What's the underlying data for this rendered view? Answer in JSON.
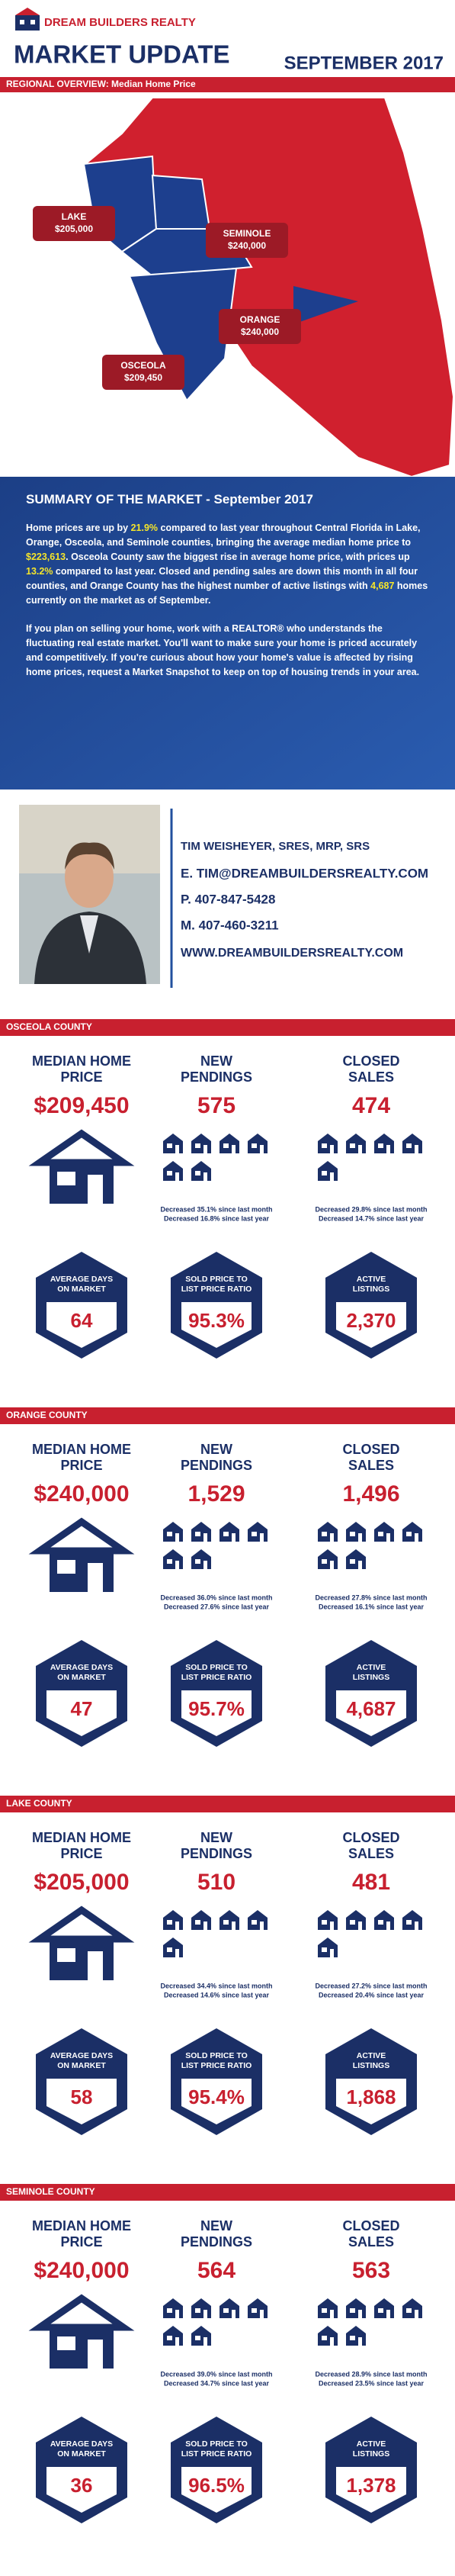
{
  "header": {
    "brand": "DREAM BUILDERS REALTY",
    "title": "MARKET UPDATE",
    "date": "SEPTEMBER 2017"
  },
  "regional": {
    "label": "REGIONAL OVERVIEW: Median Home Price",
    "counties": [
      {
        "name": "LAKE",
        "value": "$205,000"
      },
      {
        "name": "SEMINOLE",
        "value": "$240,000"
      },
      {
        "name": "ORANGE",
        "value": "$240,000"
      },
      {
        "name": "OSCEOLA",
        "value": "$209,450"
      }
    ]
  },
  "summary": {
    "title": "SUMMARY OF THE MARKET - September 2017",
    "paragraphs": [
      [
        "Home prices are up by ",
        "21.9%",
        " compared to last year throughout Central Florida in Lake, Orange, Osceola, and Seminole counties, bringing the average median home price to ",
        "$223,613",
        ". Osceola County saw the biggest rise in average home price, with prices up ",
        "13.2%",
        " compared to last year. Closed and pending sales are down this month in all four counties, and Orange County has the highest number of active listings with ",
        "4,687",
        " homes currently on the market as of September."
      ],
      [
        "If you plan on selling your home, work with a REALTOR® who understands the fluctuating real estate market. You'll want to make sure your home is priced accurately and competitively. If you're curious about how your home's value is affected by rising home prices, request a Market Snapshot to keep on top of housing trends in your area."
      ]
    ]
  },
  "agent": {
    "name": "TIM WEISHEYER, SRES, MRP, SRS",
    "email": "E. TIM@DREAMBUILDERSREALTY.COM",
    "phone": "P. 407-847-5428",
    "mobile": "M. 407-460-3211",
    "website": "WWW.DREAMBUILDERSREALTY.COM"
  },
  "metric_labels": {
    "median": [
      "MEDIAN HOME",
      "PRICE"
    ],
    "pendings": [
      "NEW",
      "PENDINGS"
    ],
    "closed": [
      "CLOSED",
      "SALES"
    ],
    "days": [
      "AVERAGE DAYS",
      "ON MARKET"
    ],
    "ratio": [
      "SOLD PRICE TO",
      "LIST PRICE RATIO"
    ],
    "active": [
      "ACTIVE",
      "LISTINGS"
    ]
  },
  "counties": [
    {
      "name": "OSCEOLA COUNTY",
      "median": "$209,450",
      "pendings": "575",
      "closed": "474",
      "pendings_notes": [
        "Decreased 35.1% since last month",
        "Decreased 16.8% since last year"
      ],
      "closed_notes": [
        "Decreased 29.8% since last month",
        "Decreased 14.7% since last year"
      ],
      "days": "64",
      "ratio": "95.3%",
      "active": "2,370"
    },
    {
      "name": "ORANGE COUNTY",
      "median": "$240,000",
      "pendings": "1,529",
      "closed": "1,496",
      "pendings_notes": [
        "Decreased 36.0% since last month",
        "Decreased 27.6% since last year"
      ],
      "closed_notes": [
        "Decreased 27.8% since last month",
        "Decreased 16.1% since last year"
      ],
      "days": "47",
      "ratio": "95.7%",
      "active": "4,687"
    },
    {
      "name": "LAKE COUNTY",
      "median": "$205,000",
      "pendings": "510",
      "closed": "481",
      "pendings_notes": [
        "Decreased 34.4% since last month",
        "Decreased 14.6% since last year"
      ],
      "closed_notes": [
        "Decreased 27.2% since last month",
        "Decreased 20.4% since last year"
      ],
      "days": "58",
      "ratio": "95.4%",
      "active": "1,868"
    },
    {
      "name": "SEMINOLE COUNTY",
      "median": "$240,000",
      "pendings": "564",
      "closed": "563",
      "pendings_notes": [
        "Decreased 39.0% since last month",
        "Decreased 34.7% since last year"
      ],
      "closed_notes": [
        "Decreased 28.9% since last month",
        "Decreased 23.5% since last year"
      ],
      "days": "36",
      "ratio": "96.5%",
      "active": "1,378"
    }
  ]
}
